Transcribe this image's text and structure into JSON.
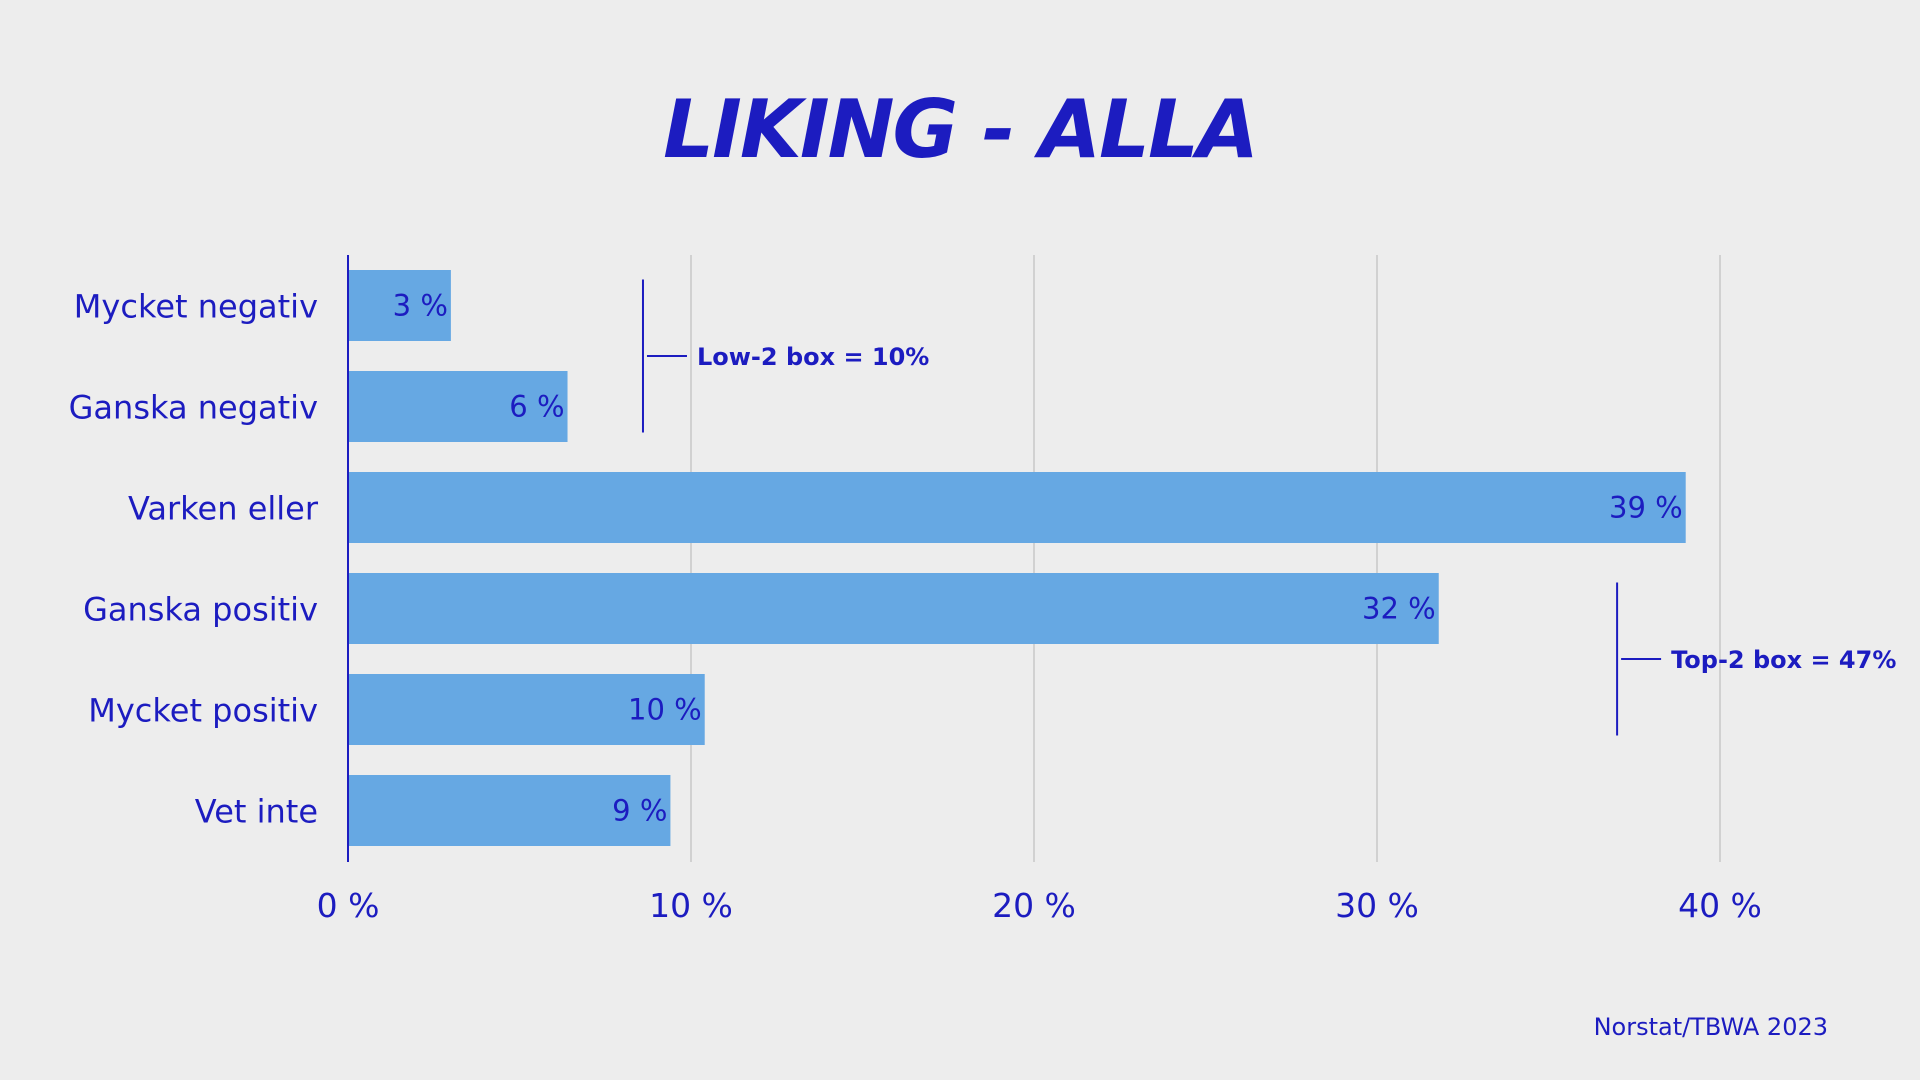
{
  "colors": {
    "background": "#ededed",
    "bar": "#66a8e3",
    "text": "#1c1cc0",
    "grid": "#c8c8c8"
  },
  "chart_data": {
    "type": "bar",
    "orientation": "horizontal",
    "title": "LIKING - ALLA",
    "xlabel": "",
    "ylabel": "",
    "categories": [
      "Mycket negativ",
      "Ganska negativ",
      "Varken eller",
      "Ganska positiv",
      "Mycket positiv",
      "Vet inte"
    ],
    "values": [
      3,
      6.4,
      39,
      31.8,
      10.4,
      9.4
    ],
    "value_labels": [
      "3 %",
      "6 %",
      "39 %",
      "32 %",
      "10 %",
      "9 %"
    ],
    "xlim": [
      0,
      45
    ],
    "x_ticks": [
      0,
      10,
      20,
      30,
      40
    ],
    "x_tick_labels": [
      "0 %",
      "10 %",
      "20 %",
      "30 %",
      "40 %"
    ],
    "grid": "vertical",
    "legend": "none",
    "annotations": [
      {
        "text": "Low-2 box = 10%",
        "from_category": 0,
        "to_category": 1,
        "at_value": 8.6
      },
      {
        "text": "Top-2 box = 47%",
        "from_category": 3,
        "to_category": 4,
        "at_value": 37
      }
    ],
    "source": "Norstat/TBWA 2023"
  }
}
